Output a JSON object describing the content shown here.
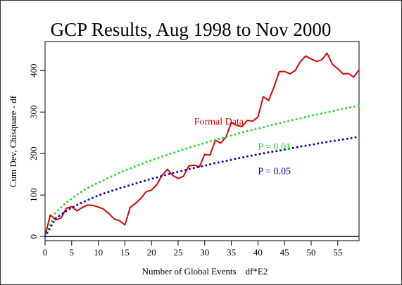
{
  "chart_data": {
    "type": "line",
    "title": "GCP Results, Aug 1998 to Nov 2000",
    "xlabel": "Number of Global Events    df*E2",
    "ylabel": "Cum Dev, Chisquare - df",
    "xlim": [
      0,
      59
    ],
    "ylim": [
      -10,
      470
    ],
    "xticks": [
      0,
      5,
      10,
      15,
      20,
      25,
      30,
      35,
      40,
      45,
      50,
      55
    ],
    "yticks": [
      0,
      100,
      200,
      300,
      400
    ],
    "grid": false,
    "series": [
      {
        "name": "Formal Data",
        "color": "#dd0000",
        "style": "solid",
        "x": [
          0,
          1,
          2,
          3,
          4,
          5,
          6,
          7,
          8,
          9,
          10,
          11,
          12,
          13,
          14,
          15,
          16,
          17,
          18,
          19,
          20,
          21,
          22,
          23,
          24,
          25,
          26,
          27,
          28,
          29,
          30,
          31,
          32,
          33,
          34,
          35,
          36,
          37,
          38,
          39,
          40,
          41,
          42,
          43,
          44,
          45,
          46,
          47,
          48,
          49,
          50,
          51,
          52,
          53,
          54,
          55,
          56,
          57,
          58,
          59
        ],
        "y": [
          2,
          52,
          40,
          45,
          68,
          72,
          62,
          70,
          76,
          75,
          71,
          66,
          55,
          42,
          38,
          28,
          70,
          80,
          92,
          108,
          112,
          125,
          148,
          162,
          147,
          140,
          145,
          170,
          172,
          168,
          198,
          196,
          232,
          225,
          240,
          275,
          268,
          265,
          280,
          278,
          288,
          337,
          328,
          360,
          397,
          398,
          392,
          400,
          422,
          435,
          428,
          422,
          426,
          442,
          415,
          404,
          392,
          393,
          384,
          402
        ]
      },
      {
        "name": "P = 0.01",
        "color": "#22dd22",
        "style": "dotted",
        "x": [
          0,
          2,
          4,
          6,
          8,
          10,
          12,
          14,
          16,
          18,
          20,
          22,
          24,
          26,
          28,
          30,
          32,
          34,
          36,
          38,
          40,
          42,
          44,
          46,
          48,
          50,
          52,
          54,
          56,
          58,
          59
        ],
        "y": [
          0,
          58,
          82,
          101,
          117,
          130,
          142,
          154,
          164,
          174,
          184,
          193,
          201,
          210,
          218,
          225,
          233,
          240,
          247,
          254,
          260,
          267,
          273,
          279,
          285,
          291,
          297,
          302,
          308,
          313,
          316
        ]
      },
      {
        "name": "P = 0.05",
        "color": "#0000cc",
        "style": "dotted",
        "x": [
          0,
          2,
          4,
          6,
          8,
          10,
          12,
          14,
          16,
          18,
          20,
          22,
          24,
          26,
          28,
          30,
          32,
          34,
          36,
          38,
          40,
          42,
          44,
          46,
          48,
          50,
          52,
          54,
          56,
          58,
          59
        ],
        "y": [
          0,
          44,
          62,
          76,
          88,
          99,
          108,
          116,
          124,
          132,
          139,
          146,
          153,
          159,
          165,
          171,
          177,
          182,
          188,
          193,
          198,
          203,
          207,
          212,
          217,
          221,
          226,
          230,
          234,
          238,
          241
        ]
      }
    ],
    "annotations": [
      {
        "text": "Formal Data",
        "x": 28,
        "y": 270,
        "color": "#dd0000"
      },
      {
        "text": "P = 0.01",
        "x": 40,
        "y": 210,
        "color": "#22dd22"
      },
      {
        "text": "P = 0.05",
        "x": 40,
        "y": 150,
        "color": "#0000cc"
      }
    ]
  }
}
